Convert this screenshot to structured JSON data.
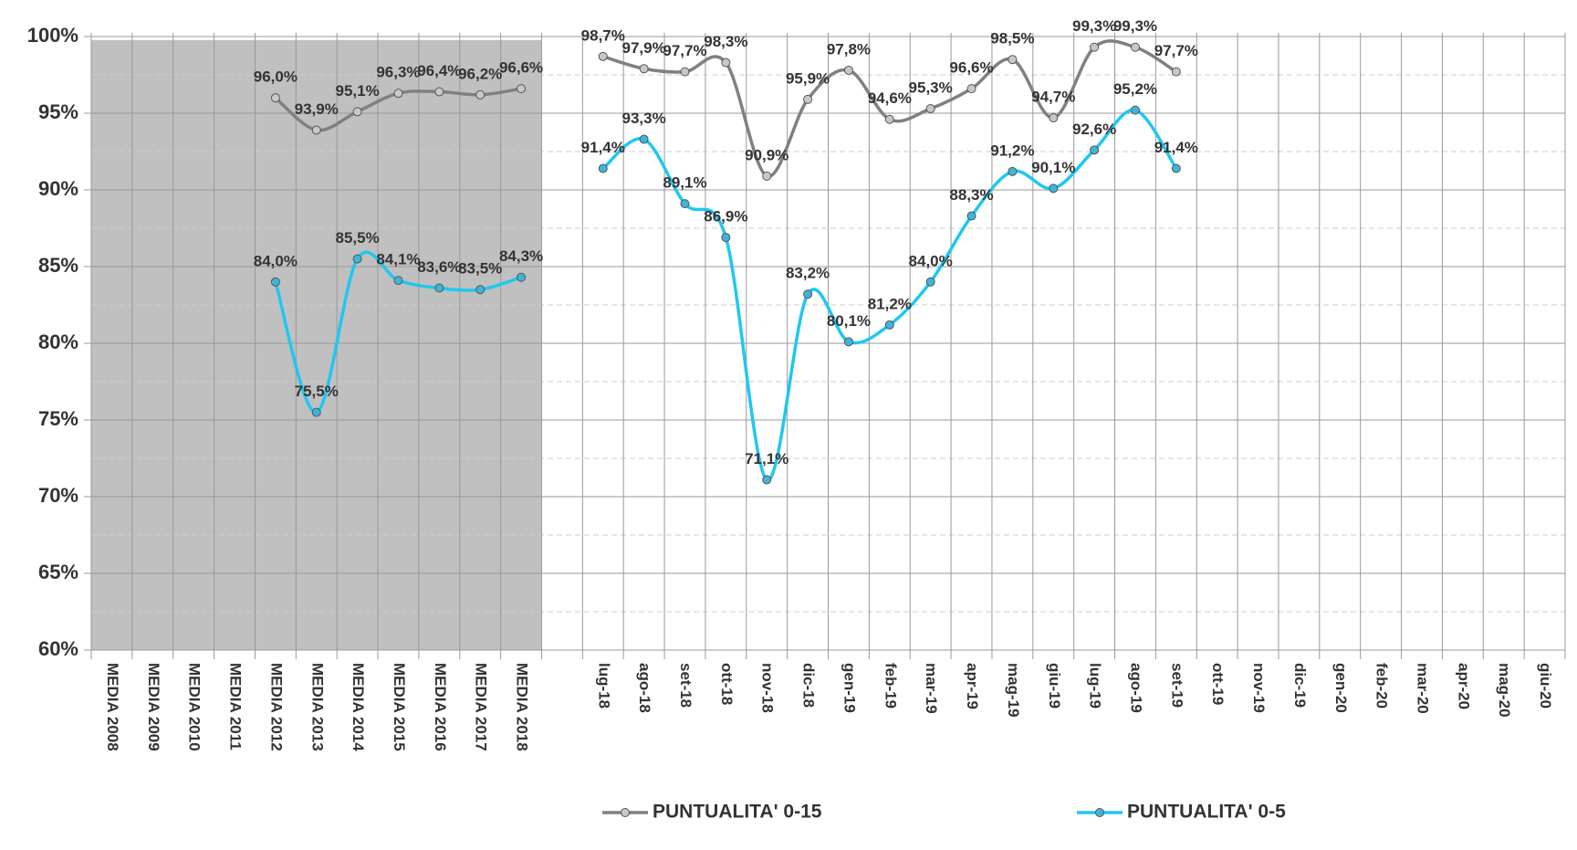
{
  "chart_data": {
    "type": "line",
    "categories": [
      "MEDIA 2008",
      "MEDIA 2009",
      "MEDIA 2010",
      "MEDIA 2011",
      "MEDIA 2012",
      "MEDIA 2013",
      "MEDIA 2014",
      "MEDIA 2015",
      "MEDIA 2016",
      "MEDIA 2017",
      "MEDIA 2018",
      null,
      "lug-18",
      "ago-18",
      "set-18",
      "ott-18",
      "nov-18",
      "dic-18",
      "gen-19",
      "feb-19",
      "mar-19",
      "apr-19",
      "mag-19",
      "giu-19",
      "lug-19",
      "ago-19",
      "set-19",
      "ott-19",
      "nov-19",
      "dic-19",
      "gen-20",
      "feb-20",
      "mar-20",
      "apr-20",
      "mag-20",
      "giu-20"
    ],
    "series": [
      {
        "name": "PUNTUALITA' 0-15",
        "color": "#808080",
        "marker_color": "#c8c8c8",
        "values": [
          null,
          null,
          null,
          null,
          96.0,
          93.9,
          95.1,
          96.3,
          96.4,
          96.2,
          96.6,
          null,
          98.7,
          97.9,
          97.7,
          98.3,
          90.9,
          95.9,
          97.8,
          94.6,
          95.3,
          96.6,
          98.5,
          94.7,
          99.3,
          99.3,
          97.7,
          null,
          null,
          null,
          null,
          null,
          null,
          null,
          null,
          null
        ],
        "value_labels": [
          null,
          null,
          null,
          null,
          "96,0%",
          "93,9%",
          "95,1%",
          "96,3%",
          "96,4%",
          "96,2%",
          "96,6%",
          null,
          "98,7%",
          "97,9%",
          "97,7%",
          "98,3%",
          "90,9%",
          "95,9%",
          "97,8%",
          "94,6%",
          "95,3%",
          "96,6%",
          "98,5%",
          "94,7%",
          "99,3%",
          "99,3%",
          "97,7%",
          null,
          null,
          null,
          null,
          null,
          null,
          null,
          null,
          null
        ]
      },
      {
        "name": "PUNTUALITA' 0-5",
        "color": "#1ec8f0",
        "marker_color": "#40b4d8",
        "values": [
          null,
          null,
          null,
          null,
          84.0,
          75.5,
          85.5,
          84.1,
          83.6,
          83.5,
          84.3,
          null,
          91.4,
          93.3,
          89.1,
          86.9,
          71.1,
          83.2,
          80.1,
          81.2,
          84.0,
          88.3,
          91.2,
          90.1,
          92.6,
          95.2,
          91.4,
          null,
          null,
          null,
          null,
          null,
          null,
          null,
          null,
          null
        ],
        "value_labels": [
          null,
          null,
          null,
          null,
          "84,0%",
          "75,5%",
          "85,5%",
          "84,1%",
          "83,6%",
          "83,5%",
          "84,3%",
          null,
          "91,4%",
          "93,3%",
          "89,1%",
          "86,9%",
          "71,1%",
          "83,2%",
          "80,1%",
          "81,2%",
          "84,0%",
          "88,3%",
          "91,2%",
          "90,1%",
          "92,6%",
          "95,2%",
          "91,4%",
          null,
          null,
          null,
          null,
          null,
          null,
          null,
          null,
          null
        ]
      }
    ],
    "ylim": [
      60,
      100
    ],
    "yticks": [
      {
        "value": 60,
        "label": "60%"
      },
      {
        "value": 65,
        "label": "65%"
      },
      {
        "value": 70,
        "label": "70%"
      },
      {
        "value": 75,
        "label": "75%"
      },
      {
        "value": 80,
        "label": "80%"
      },
      {
        "value": 85,
        "label": "85%"
      },
      {
        "value": 90,
        "label": "90%"
      },
      {
        "value": 95,
        "label": "95%"
      },
      {
        "value": 100,
        "label": "100%"
      }
    ],
    "grid": true,
    "legend": "bottom"
  }
}
